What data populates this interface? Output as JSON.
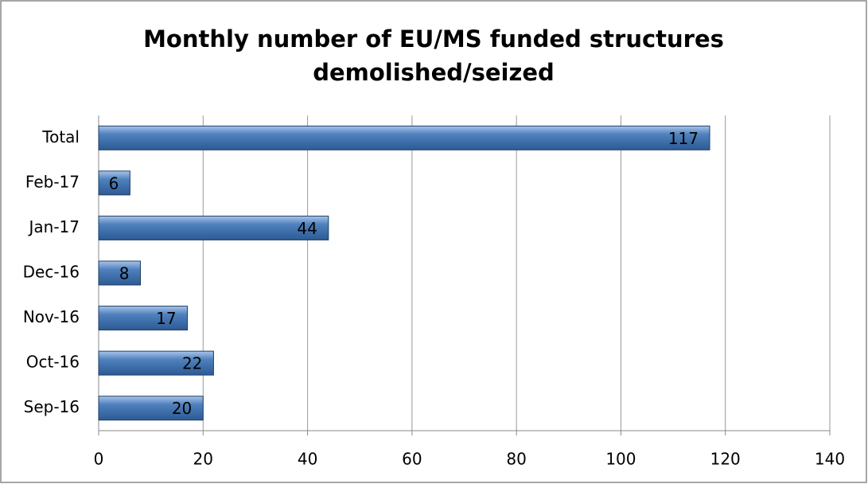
{
  "chart_data": {
    "type": "bar",
    "orientation": "horizontal",
    "title": "Monthly number of EU/MS funded structures demolished/seized",
    "categories": [
      "Total",
      "Feb-17",
      "Jan-17",
      "Dec-16",
      "Nov-16",
      "Oct-16",
      "Sep-16"
    ],
    "values": [
      117,
      6,
      44,
      8,
      17,
      22,
      20
    ],
    "color": "#4f81bd",
    "xlim": [
      0,
      140
    ],
    "xticks": [
      0,
      20,
      40,
      60,
      80,
      100,
      120,
      140
    ],
    "grid": true
  }
}
